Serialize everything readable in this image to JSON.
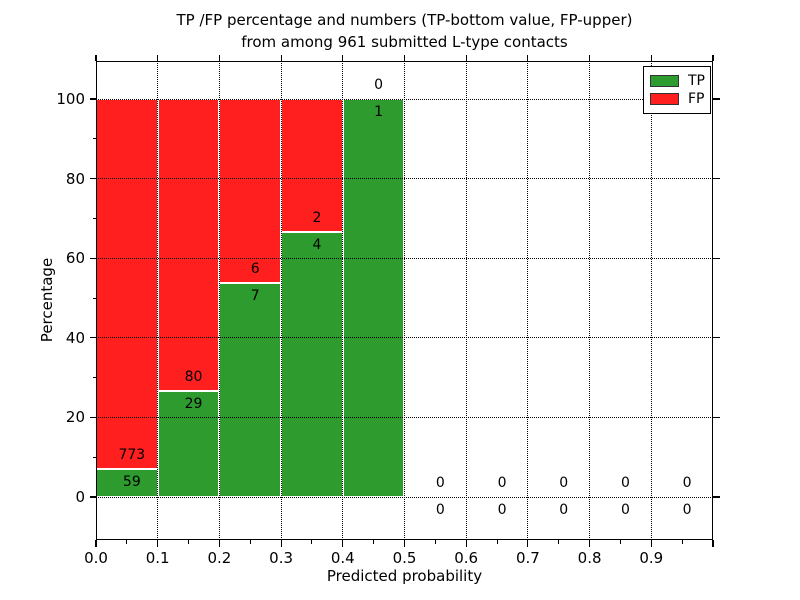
{
  "chart_data": {
    "type": "bar",
    "stacked": true,
    "title_line1": "TP /FP percentage and numbers (TP-bottom value, FP-upper)",
    "title_line2": "from among 961 submitted L-type contacts",
    "xlabel": "Predicted probability",
    "ylabel": "Percentage",
    "total_submitted": 961,
    "xlim": [
      0.0,
      1.0
    ],
    "ylim_pct": [
      -10.8,
      109.5
    ],
    "bin_width": 0.1,
    "bin_starts": [
      0.0,
      0.1,
      0.2,
      0.3,
      0.4,
      0.5,
      0.6,
      0.7,
      0.8,
      0.9
    ],
    "x_tick_labels": [
      "0.0",
      "0.1",
      "0.2",
      "0.3",
      "0.4",
      "0.5",
      "0.6",
      "0.7",
      "0.8",
      "0.9"
    ],
    "y_ticks": [
      0,
      20,
      40,
      60,
      80,
      100
    ],
    "grid_style": "dotted",
    "legend_position": "upper right",
    "series": [
      {
        "name": "TP",
        "color": "#2d9b2d",
        "counts": [
          59,
          29,
          7,
          4,
          1,
          0,
          0,
          0,
          0,
          0
        ]
      },
      {
        "name": "FP",
        "color": "#ff1f1f",
        "counts": [
          773,
          80,
          6,
          2,
          0,
          0,
          0,
          0,
          0,
          0
        ]
      }
    ],
    "tp_percentages": [
      7.09,
      26.61,
      53.85,
      66.67,
      100.0,
      0,
      0,
      0,
      0,
      0
    ]
  },
  "colors": {
    "tp_green": "#2d9b2d",
    "fp_red": "#ff1f1f",
    "grid": "#000000",
    "frame": "#000000",
    "background": "#ffffff"
  }
}
